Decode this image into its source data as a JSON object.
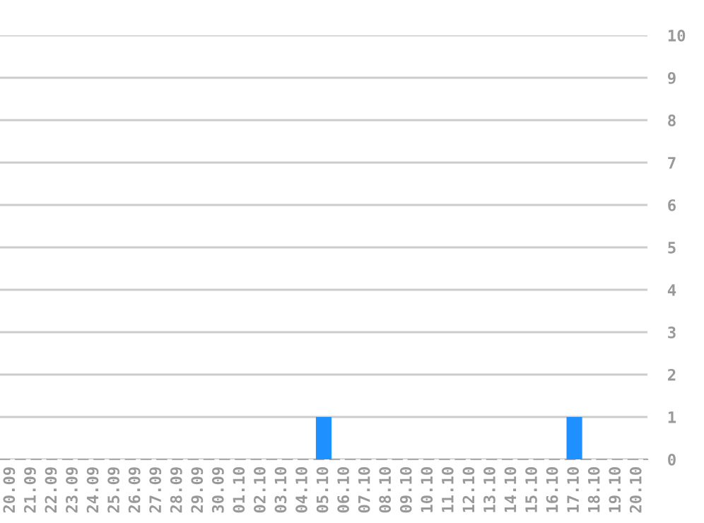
{
  "chart_data": {
    "type": "bar",
    "categories": [
      "20.09",
      "21.09",
      "22.09",
      "23.09",
      "24.09",
      "25.09",
      "26.09",
      "27.09",
      "28.09",
      "29.09",
      "30.09",
      "01.10",
      "02.10",
      "03.10",
      "04.10",
      "05.10",
      "06.10",
      "07.10",
      "08.10",
      "09.10",
      "10.10",
      "11.10",
      "12.10",
      "13.10",
      "14.10",
      "15.10",
      "16.10",
      "17.10",
      "18.10",
      "19.10",
      "20.10"
    ],
    "values": [
      0,
      0,
      0,
      0,
      0,
      0,
      0,
      0,
      0,
      0,
      0,
      0,
      0,
      0,
      0,
      1,
      0,
      0,
      0,
      0,
      0,
      0,
      0,
      0,
      0,
      0,
      0,
      1,
      0,
      0,
      0
    ],
    "color": "#1e90ff",
    "ylim": [
      0,
      10
    ],
    "yticks": [
      0,
      1,
      2,
      3,
      4,
      5,
      6,
      7,
      8,
      9,
      10
    ],
    "grid": "y"
  }
}
